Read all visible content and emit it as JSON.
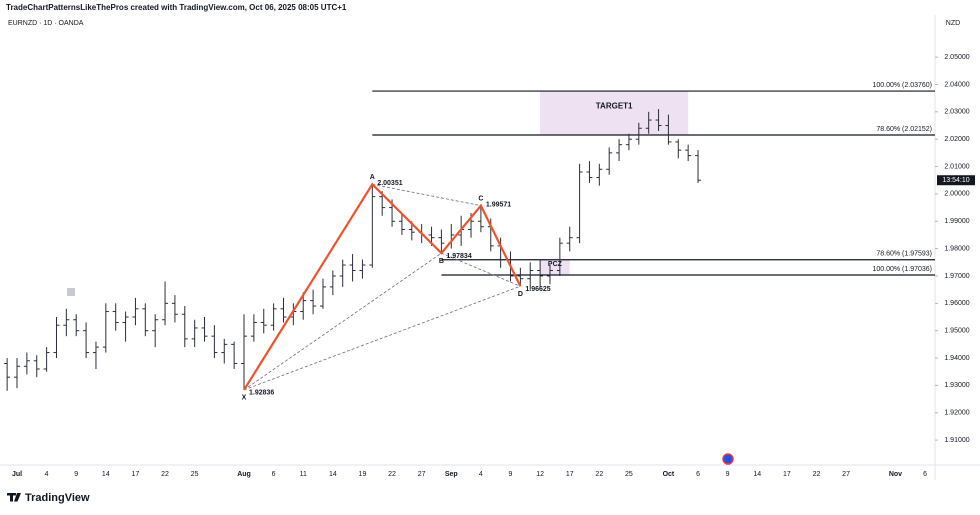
{
  "header": {
    "credit": "TradeChartPatternsLikeThePros created with TradingView.com, Oct 06, 2025 08:05 UTC+1",
    "symbol": "EURNZD · 1D · OANDA",
    "currency": "NZD",
    "countdown": "13:54:10",
    "logo": "TradingView"
  },
  "chart_data": {
    "type": "ohlc",
    "color": "#2a2e39",
    "categories": [
      null,
      "Jul",
      null,
      null,
      "4",
      null,
      null,
      "9",
      null,
      null,
      "14",
      null,
      null,
      "17",
      null,
      null,
      "22",
      null,
      null,
      "25",
      null,
      null,
      null,
      null,
      "Aug",
      null,
      null,
      "6",
      null,
      null,
      "11",
      null,
      null,
      "14",
      null,
      null,
      "19",
      null,
      null,
      "22",
      null,
      null,
      "27",
      null,
      null,
      "Sep",
      null,
      null,
      "4",
      null,
      null,
      "9",
      null,
      null,
      "12",
      null,
      null,
      "17",
      null,
      null,
      "22",
      null,
      null,
      "25",
      null,
      null,
      null,
      "Oct",
      null,
      null,
      "6",
      null,
      null,
      "9",
      null,
      null,
      "14",
      null,
      null,
      "17",
      null,
      null,
      "22",
      null,
      null,
      "27",
      null,
      null,
      null,
      null,
      "Nov",
      null,
      null,
      "6"
    ],
    "open": [
      1.938,
      1.933,
      1.937,
      1.939,
      1.936,
      1.942,
      1.952,
      1.954,
      1.95,
      1.942,
      1.944,
      1.957,
      1.953,
      1.955,
      1.958,
      1.95,
      1.954,
      1.96,
      1.956,
      1.947,
      1.951,
      1.948,
      1.942,
      1.945,
      1.938,
      1.948,
      1.953,
      1.952,
      1.958,
      1.955,
      1.957,
      1.961,
      1.959,
      1.966,
      1.97,
      1.974,
      1.972,
      1.974,
      1.999,
      1.995,
      1.99,
      1.987,
      1.986,
      1.985,
      1.984,
      1.982,
      1.985,
      1.987,
      1.99,
      1.988,
      1.981,
      1.976,
      1.97,
      1.969,
      1.972,
      1.97,
      1.972,
      1.982,
      1.984,
      2.008,
      2.006,
      2.009,
      2.015,
      2.018,
      2.02,
      2.024,
      2.027,
      2.025,
      2.019,
      2.016,
      2.014,
      null,
      null,
      null,
      null,
      null,
      null,
      null,
      null,
      null,
      null,
      null,
      null,
      null,
      null,
      null,
      null,
      null,
      null,
      null,
      null,
      null,
      null,
      null
    ],
    "high": [
      1.94,
      1.94,
      1.942,
      1.941,
      1.944,
      1.955,
      1.958,
      1.956,
      1.953,
      1.946,
      1.96,
      1.96,
      1.957,
      1.962,
      1.96,
      1.956,
      1.968,
      1.963,
      1.959,
      1.954,
      1.955,
      1.952,
      1.947,
      1.946,
      1.956,
      1.956,
      1.958,
      1.96,
      1.962,
      1.96,
      1.964,
      1.965,
      1.969,
      1.972,
      1.976,
      1.978,
      1.976,
      2.00351,
      2.001,
      1.998,
      1.993,
      1.99,
      1.989,
      1.988,
      1.987,
      1.989,
      1.992,
      1.993,
      1.99571,
      1.991,
      1.984,
      1.979,
      1.973,
      1.975,
      1.976,
      1.974,
      1.984,
      1.988,
      2.011,
      2.012,
      2.011,
      2.017,
      2.02,
      2.022,
      2.026,
      2.03,
      2.031,
      2.029,
      2.02,
      2.018,
      2.016,
      null,
      null,
      null,
      null,
      null,
      null,
      null,
      null,
      null,
      null,
      null,
      null,
      null,
      null,
      null,
      null,
      null,
      null,
      null,
      null,
      null,
      null,
      null
    ],
    "low": [
      1.928,
      1.929,
      1.934,
      1.933,
      1.935,
      1.94,
      1.948,
      1.948,
      1.94,
      1.936,
      1.942,
      1.95,
      1.946,
      1.952,
      1.948,
      1.944,
      1.952,
      1.953,
      1.944,
      1.944,
      1.946,
      1.94,
      1.938,
      1.936,
      1.92836,
      1.946,
      1.949,
      1.95,
      1.953,
      1.952,
      1.954,
      1.956,
      1.958,
      1.963,
      1.966,
      1.968,
      1.969,
      1.973,
      1.992,
      1.988,
      1.985,
      1.983,
      1.982,
      1.981,
      1.97834,
      1.98,
      1.981,
      1.984,
      1.986,
      1.979,
      1.973,
      1.968,
      1.96625,
      1.965,
      1.966,
      1.967,
      1.97,
      1.979,
      1.982,
      2.004,
      2.003,
      2.007,
      2.012,
      2.016,
      2.018,
      2.022,
      2.023,
      2.018,
      2.013,
      2.012,
      2.004,
      null,
      null,
      null,
      null,
      null,
      null,
      null,
      null,
      null,
      null,
      null,
      null,
      null,
      null,
      null,
      null,
      null,
      null,
      null,
      null,
      null,
      null,
      null
    ],
    "close": [
      1.933,
      1.937,
      1.939,
      1.936,
      1.942,
      1.952,
      1.954,
      1.95,
      1.942,
      1.944,
      1.957,
      1.953,
      1.955,
      1.958,
      1.95,
      1.954,
      1.96,
      1.956,
      1.947,
      1.951,
      1.948,
      1.942,
      1.945,
      1.938,
      1.948,
      1.953,
      1.952,
      1.958,
      1.955,
      1.957,
      1.961,
      1.959,
      1.966,
      1.97,
      1.974,
      1.972,
      1.974,
      1.999,
      1.995,
      1.99,
      1.987,
      1.986,
      1.985,
      1.984,
      1.982,
      1.985,
      1.987,
      1.99,
      1.988,
      1.981,
      1.976,
      1.97,
      1.969,
      1.972,
      1.97,
      1.972,
      1.982,
      1.984,
      2.008,
      2.006,
      2.009,
      2.015,
      2.018,
      2.02,
      2.024,
      2.027,
      2.025,
      2.019,
      2.016,
      2.014,
      2.005,
      null,
      null,
      null,
      null,
      null,
      null,
      null,
      null,
      null,
      null,
      null,
      null,
      null,
      null,
      null,
      null,
      null,
      null,
      null,
      null,
      null,
      null,
      null
    ],
    "ylim": [
      1.9009,
      2.0654
    ],
    "yticks": [
      {
        "value": 1.91,
        "label": "1.91000"
      },
      {
        "value": 1.92,
        "label": "1.92000"
      },
      {
        "value": 1.93,
        "label": "1.93000"
      },
      {
        "value": 1.94,
        "label": "1.94000"
      },
      {
        "value": 1.95,
        "label": "1.95000"
      },
      {
        "value": 1.96,
        "label": "1.96000"
      },
      {
        "value": 1.97,
        "label": "1.97000"
      },
      {
        "value": 1.98,
        "label": "1.98000"
      },
      {
        "value": 1.99,
        "label": "1.99000"
      },
      {
        "value": 2.0,
        "label": "2.00000"
      },
      {
        "value": 2.01,
        "label": "2.01000"
      },
      {
        "value": 2.02,
        "label": "2.02000"
      },
      {
        "value": 2.03,
        "label": "2.03000"
      },
      {
        "value": 2.04,
        "label": "2.04000"
      },
      {
        "value": 2.05,
        "label": "2.05000"
      }
    ],
    "grid": false,
    "pattern": {
      "color": "#f0532f",
      "points": [
        {
          "label": "X",
          "bar": 24,
          "value": 1.92836
        },
        {
          "label": "A",
          "bar": 37,
          "value": 2.00351
        },
        {
          "label": "B",
          "bar": 44,
          "value": 1.97834
        },
        {
          "label": "C",
          "bar": 48,
          "value": 1.99571
        },
        {
          "label": "D",
          "bar": 52,
          "value": 1.96625
        }
      ]
    },
    "levels": [
      {
        "value": 2.0376,
        "label": "100.00% (2.03760)",
        "bar": 37
      },
      {
        "value": 2.02152,
        "label": "78.60% (2.02152)",
        "bar": 37
      },
      {
        "value": 1.97593,
        "label": "78.60% (1.97593)",
        "bar": 44
      },
      {
        "value": 1.97036,
        "label": "100.00% (1.97036)",
        "bar": 44
      }
    ],
    "zones": [
      {
        "label": "TARGET1",
        "top": 2.0376,
        "bottom": 2.02152,
        "from": 54,
        "to": 69
      },
      {
        "label": "PCZ",
        "top": 1.97593,
        "bottom": 1.97036,
        "from": 54,
        "to": 57
      }
    ]
  }
}
